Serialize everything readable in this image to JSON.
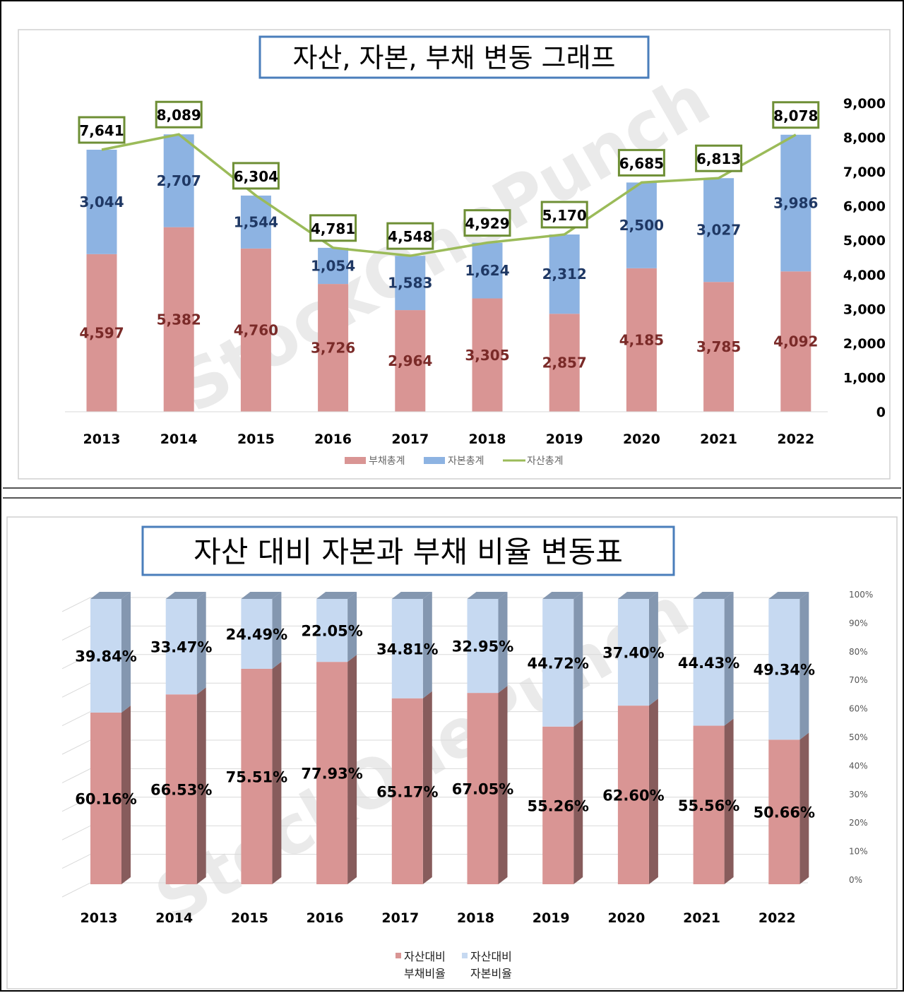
{
  "chart_data": [
    {
      "type": "bar",
      "title": "자산, 자본, 부채 변동 그래프",
      "stacked": true,
      "categories": [
        "2013",
        "2014",
        "2015",
        "2016",
        "2017",
        "2018",
        "2019",
        "2020",
        "2021",
        "2022"
      ],
      "series": [
        {
          "name": "부채총계",
          "type": "bar",
          "color": "#d99594",
          "values": [
            4597,
            5382,
            4760,
            3726,
            2964,
            3305,
            2857,
            4185,
            3785,
            4092
          ]
        },
        {
          "name": "자본총계",
          "type": "bar",
          "color": "#8db3e2",
          "values": [
            3044,
            2707,
            1544,
            1054,
            1583,
            1624,
            2312,
            2500,
            3027,
            3986
          ]
        },
        {
          "name": "자산총계",
          "type": "line",
          "color": "#9bbb59",
          "values": [
            7641,
            8089,
            6304,
            4781,
            4548,
            4929,
            5170,
            6685,
            6813,
            8078
          ]
        }
      ],
      "value_labels": {
        "부채총계": [
          "4,597",
          "5,382",
          "4,760",
          "3,726",
          "2,964",
          "3,305",
          "2,857",
          "4,185",
          "3,785",
          "4,092"
        ],
        "자본총계": [
          "3,044",
          "2,707",
          "1,544",
          "1,054",
          "1,583",
          "1,624",
          "2,312",
          "2,500",
          "3,027",
          "3,986"
        ],
        "자산총계": [
          "7,641",
          "8,089",
          "6,304",
          "4,781",
          "4,548",
          "4,929",
          "5,170",
          "6,685",
          "6,813",
          "8,078"
        ]
      },
      "y_ticks": [
        "0",
        "1,000",
        "2,000",
        "3,000",
        "4,000",
        "5,000",
        "6,000",
        "7,000",
        "8,000",
        "9,000"
      ],
      "ylim": [
        0,
        9000
      ],
      "y_axis_side": "right",
      "legend_position": "bottom",
      "grid": false,
      "watermark": "StockOnePunch"
    },
    {
      "type": "bar",
      "title": "자산 대비 자본과 부채 비율 변동표",
      "stacked": true,
      "style": "3d-column",
      "categories": [
        "2013",
        "2014",
        "2015",
        "2016",
        "2017",
        "2018",
        "2019",
        "2020",
        "2021",
        "2022"
      ],
      "series": [
        {
          "name": "자산대비 부채비율",
          "color": "#d99594",
          "values": [
            60.16,
            66.53,
            75.51,
            77.93,
            65.17,
            67.05,
            55.26,
            62.6,
            55.56,
            50.66
          ]
        },
        {
          "name": "자산대비 자본비율",
          "color": "#c6d9f1",
          "values": [
            39.84,
            33.47,
            24.49,
            22.05,
            34.81,
            32.95,
            44.72,
            37.4,
            44.43,
            49.34
          ]
        }
      ],
      "value_labels": {
        "자산대비 부채비율": [
          "60.16%",
          "66.53%",
          "75.51%",
          "77.93%",
          "65.17%",
          "67.05%",
          "55.26%",
          "62.60%",
          "55.56%",
          "50.66%"
        ],
        "자산대비 자본비율": [
          "39.84%",
          "33.47%",
          "24.49%",
          "22.05%",
          "34.81%",
          "32.95%",
          "44.72%",
          "37.40%",
          "44.43%",
          "49.34%"
        ]
      },
      "legend_lines": [
        [
          "자산대비",
          "부채비율"
        ],
        [
          "자산대비",
          "자본비율"
        ]
      ],
      "y_ticks": [
        "0%",
        "10%",
        "20%",
        "30%",
        "40%",
        "50%",
        "60%",
        "70%",
        "80%",
        "90%",
        "100%"
      ],
      "ylim": [
        0,
        100
      ],
      "y_axis_side": "right",
      "legend_position": "bottom",
      "grid": true,
      "watermark": "StockOnePunch"
    }
  ]
}
